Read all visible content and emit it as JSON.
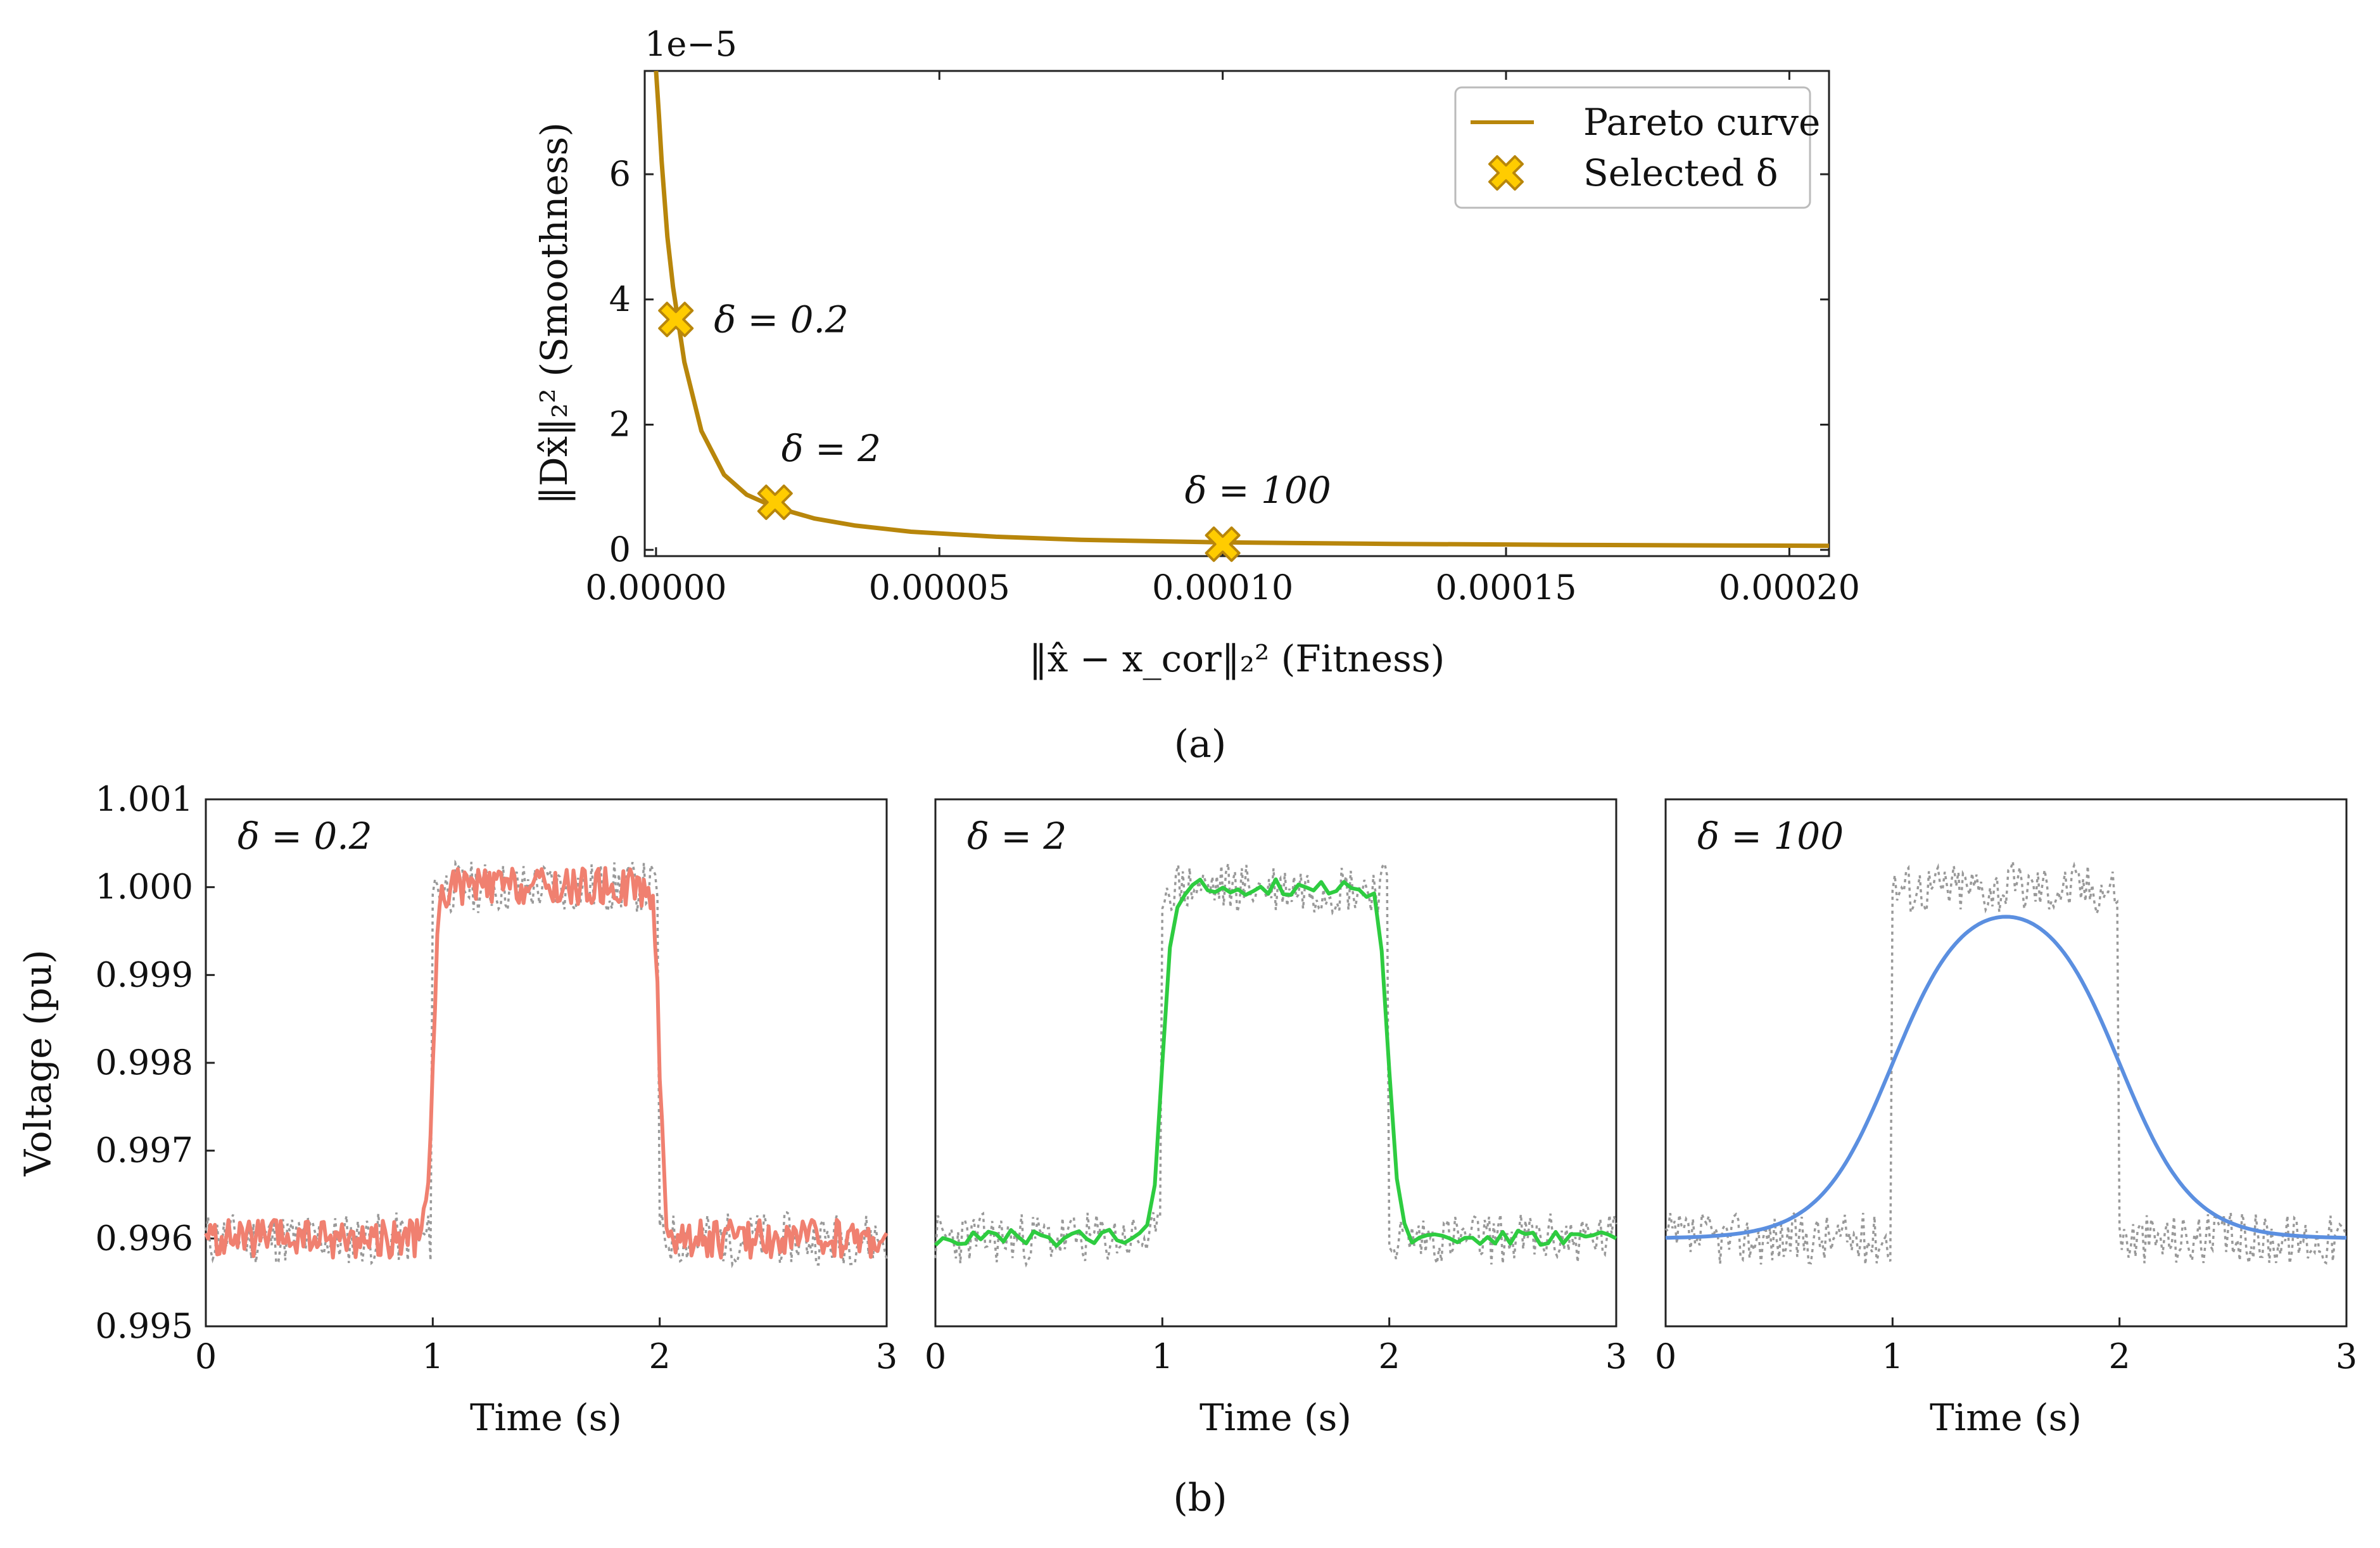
{
  "colors": {
    "pareto": "#b8860b",
    "marker_fill": "#ffcc00",
    "marker_edge": "#b8860b",
    "noisy": "#999999",
    "delta_0_2": "#f08070",
    "delta_2": "#2ecc40",
    "delta_100": "#5b8fe0"
  },
  "chart_data": [
    {
      "type": "line",
      "panel": "a",
      "caption": "(a)",
      "xlabel": "‖x̂ − x_cor‖₂² (Fitness)",
      "ylabel": "‖Dx̂‖₂² (Smoothness)",
      "y_offset_label": "1e−5",
      "xlim": [
        -2e-06,
        0.000207
      ],
      "ylim": [
        -1e-06,
        7.65e-05
      ],
      "xticks": [
        0.0,
        5e-05,
        0.0001,
        0.00015,
        0.0002
      ],
      "xtick_labels": [
        "0.00000",
        "0.00005",
        "0.00010",
        "0.00015",
        "0.00020"
      ],
      "yticks": [
        0,
        2e-05,
        4e-05,
        6e-05
      ],
      "ytick_labels": [
        "0",
        "2",
        "4",
        "6"
      ],
      "legend": {
        "position": "top-right",
        "entries": [
          {
            "label": "Pareto curve",
            "kind": "line"
          },
          {
            "label": "Selected δ",
            "kind": "x-marker"
          }
        ]
      },
      "series": [
        {
          "name": "Pareto curve",
          "x": [
            0.0,
            5e-07,
            1e-06,
            2e-06,
            3e-06,
            5e-06,
            8e-06,
            1.2e-05,
            1.6e-05,
            2.1e-05,
            2.8e-05,
            3.5e-05,
            4.5e-05,
            6e-05,
            7.5e-05,
            0.0001,
            0.00013,
            0.00016,
            0.00019,
            0.000207
          ],
          "y": [
            7.65e-05,
            6.95e-05,
            6.2e-05,
            5e-05,
            4.2e-05,
            3e-05,
            1.9e-05,
            1.2e-05,
            8.8e-06,
            6.8e-06,
            5e-06,
            3.9e-06,
            2.9e-06,
            2.1e-06,
            1.6e-06,
            1.2e-06,
            9.5e-07,
            8e-07,
            7e-07,
            6.5e-07
          ]
        },
        {
          "name": "Selected δ",
          "points": [
            {
              "x": 3.5e-06,
              "y": 3.68e-05,
              "label": "δ = 0.2"
            },
            {
              "x": 2.1e-05,
              "y": 7.6e-06,
              "label": "δ = 2"
            },
            {
              "x": 0.0001,
              "y": 9e-07,
              "label": "δ = 100"
            }
          ]
        }
      ]
    },
    {
      "type": "line",
      "panel": "b1",
      "annotation": "δ = 0.2",
      "xlabel": "Time (s)",
      "ylabel": "Voltage (pu)",
      "xlim": [
        0,
        3
      ],
      "ylim": [
        0.995,
        1.001
      ],
      "xticks": [
        0,
        1,
        2,
        3
      ],
      "yticks": [
        0.995,
        0.996,
        0.997,
        0.998,
        0.999,
        1.0,
        1.001
      ],
      "ytick_labels": [
        "0.995",
        "0.996",
        "0.997",
        "0.998",
        "0.999",
        "1.000",
        "1.001"
      ],
      "step": {
        "low": 0.996,
        "high": 1.0,
        "t_on": 1,
        "t_off": 2
      },
      "noisy_amplitude": 0.0003,
      "estimate_amplitude": 0.00022,
      "rise_width": 0.012,
      "estimate_color_key": "delta_0_2"
    },
    {
      "type": "line",
      "panel": "b2",
      "annotation": "δ = 2",
      "xlabel": "Time (s)",
      "xlim": [
        0,
        3
      ],
      "ylim": [
        0.995,
        1.001
      ],
      "xticks": [
        0,
        1,
        2,
        3
      ],
      "step": {
        "low": 0.996,
        "high": 1.0,
        "t_on": 1,
        "t_off": 2
      },
      "noisy_amplitude": 0.0003,
      "estimate_amplitude": 0.0001,
      "rise_width": 0.02,
      "estimate_color_key": "delta_2"
    },
    {
      "type": "line",
      "panel": "b3",
      "annotation": "δ = 100",
      "xlabel": "Time (s)",
      "xlim": [
        0,
        3
      ],
      "ylim": [
        0.995,
        1.001
      ],
      "xticks": [
        0,
        1,
        2,
        3
      ],
      "step": {
        "low": 0.996,
        "high": 1.0,
        "t_on": 1,
        "t_off": 2
      },
      "noisy_amplitude": 0.0003,
      "estimate_amplitude": 0.0,
      "rise_width": 0.16,
      "estimate_color_key": "delta_100"
    }
  ],
  "captions": {
    "a": "(a)",
    "b": "(b)"
  }
}
